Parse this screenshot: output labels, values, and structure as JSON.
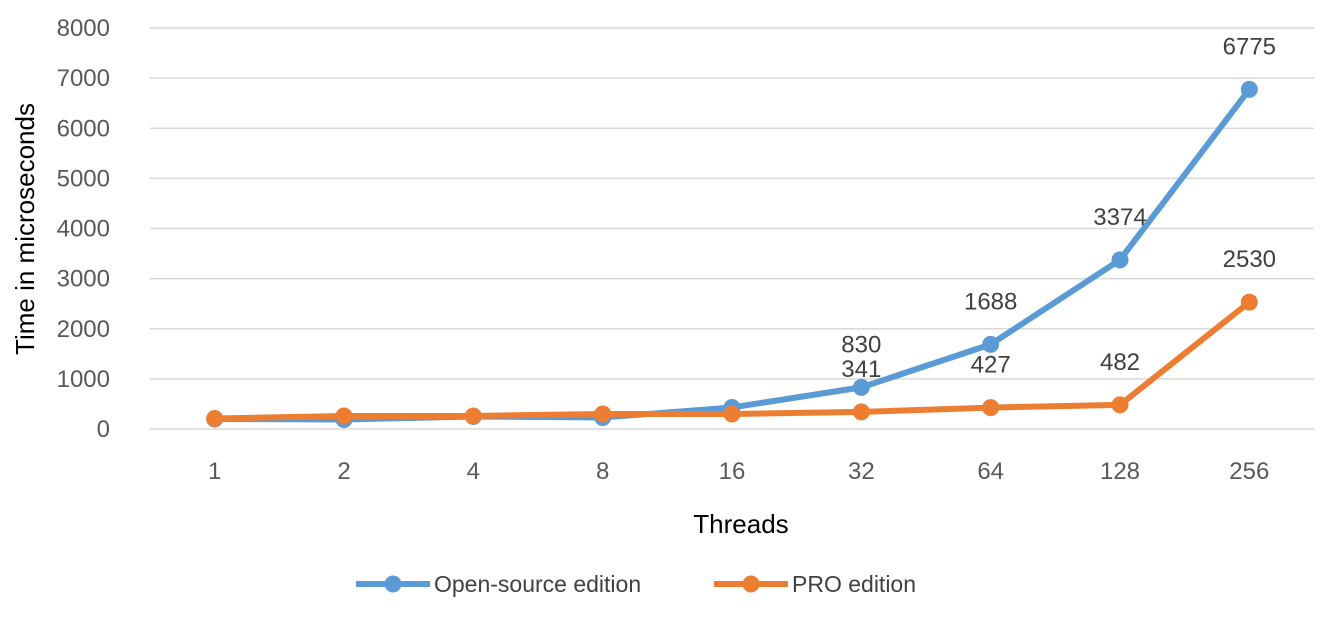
{
  "chart_data": {
    "type": "line",
    "xlabel": "Threads",
    "ylabel": "Time in microseconds",
    "categories": [
      "1",
      "2",
      "4",
      "8",
      "16",
      "32",
      "64",
      "128",
      "256"
    ],
    "ylim": [
      0,
      8000
    ],
    "yticks": [
      0,
      1000,
      2000,
      3000,
      4000,
      5000,
      6000,
      7000,
      8000
    ],
    "grid": true,
    "legend_position": "bottom",
    "series": [
      {
        "name": "Open-source edition",
        "color": "#5B9BD5",
        "values": [
          200,
          190,
          250,
          230,
          430,
          830,
          1688,
          3374,
          6775
        ],
        "labels": [
          "",
          "",
          "",
          "",
          "",
          "830",
          "1688",
          "3374",
          "6775"
        ]
      },
      {
        "name": "PRO edition",
        "color": "#ED7D31",
        "values": [
          210,
          260,
          260,
          300,
          300,
          341,
          427,
          482,
          2530
        ],
        "labels": [
          "",
          "",
          "",
          "",
          "",
          "341",
          "427",
          "482",
          "2530"
        ]
      }
    ]
  }
}
